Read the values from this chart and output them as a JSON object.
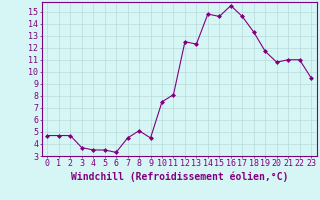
{
  "x": [
    0,
    1,
    2,
    3,
    4,
    5,
    6,
    7,
    8,
    9,
    10,
    11,
    12,
    13,
    14,
    15,
    16,
    17,
    18,
    19,
    20,
    21,
    22,
    23
  ],
  "y": [
    4.7,
    4.7,
    4.7,
    3.7,
    3.5,
    3.5,
    3.3,
    4.5,
    5.1,
    4.5,
    7.5,
    8.1,
    12.5,
    12.3,
    14.8,
    14.6,
    15.5,
    14.6,
    13.3,
    11.7,
    10.8,
    11.0,
    11.0,
    9.5
  ],
  "line_color": "#800080",
  "marker": "D",
  "marker_size": 2.0,
  "bg_color": "#d6f5f5",
  "grid_color": "#b8dada",
  "xlabel": "Windchill (Refroidissement éolien,°C)",
  "ylim": [
    3,
    15.8
  ],
  "xlim": [
    -0.5,
    23.5
  ],
  "yticks": [
    3,
    4,
    5,
    6,
    7,
    8,
    9,
    10,
    11,
    12,
    13,
    14,
    15
  ],
  "xticks": [
    0,
    1,
    2,
    3,
    4,
    5,
    6,
    7,
    8,
    9,
    10,
    11,
    12,
    13,
    14,
    15,
    16,
    17,
    18,
    19,
    20,
    21,
    22,
    23
  ],
  "tick_color": "#800080",
  "label_color": "#800080",
  "spine_color": "#800080",
  "font_size": 6.0,
  "xlabel_fontsize": 7.0
}
